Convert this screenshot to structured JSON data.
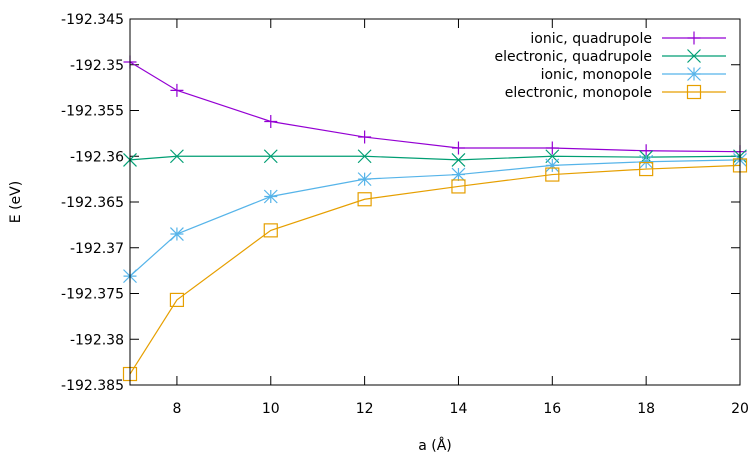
{
  "chart_data": {
    "type": "line",
    "xlabel": "a (Å)",
    "ylabel": "E (eV)",
    "xlim": [
      7,
      20
    ],
    "ylim": [
      -192.385,
      -192.345
    ],
    "xticks": [
      8,
      10,
      12,
      14,
      16,
      18,
      20
    ],
    "xtick_labels": [
      "8",
      "10",
      "12",
      "14",
      "16",
      "18",
      "20"
    ],
    "yticks": [
      -192.345,
      -192.35,
      -192.355,
      -192.36,
      -192.365,
      -192.37,
      -192.375,
      -192.38,
      -192.385
    ],
    "ytick_labels": [
      "-192.345",
      "-192.35",
      "-192.355",
      "-192.36",
      "-192.365",
      "-192.37",
      "-192.375",
      "-192.38",
      "-192.385"
    ],
    "grid": false,
    "legend_position": "top-right",
    "x": [
      7,
      8,
      10,
      12,
      14,
      16,
      18,
      20
    ],
    "series": [
      {
        "name": "ionic, quadrupole",
        "color": "#9400d3",
        "marker": "plus",
        "values": [
          -192.3497,
          -192.3528,
          -192.3562,
          -192.3579,
          -192.3591,
          -192.3591,
          -192.3594,
          -192.3595
        ]
      },
      {
        "name": "electronic, quadrupole",
        "color": "#009e73",
        "marker": "cross",
        "values": [
          -192.3604,
          -192.36,
          -192.36,
          -192.36,
          -192.3604,
          -192.36,
          -192.3601,
          -192.36
        ]
      },
      {
        "name": "ionic, monopole",
        "color": "#56b4e9",
        "marker": "star",
        "values": [
          -192.3731,
          -192.3685,
          -192.3644,
          -192.3625,
          -192.362,
          -192.361,
          -192.3606,
          -192.3604
        ]
      },
      {
        "name": "electronic, monopole",
        "color": "#e69f00",
        "marker": "square",
        "values": [
          -192.3838,
          -192.3757,
          -192.3681,
          -192.3647,
          -192.3633,
          -192.362,
          -192.3614,
          -192.361
        ]
      }
    ]
  }
}
